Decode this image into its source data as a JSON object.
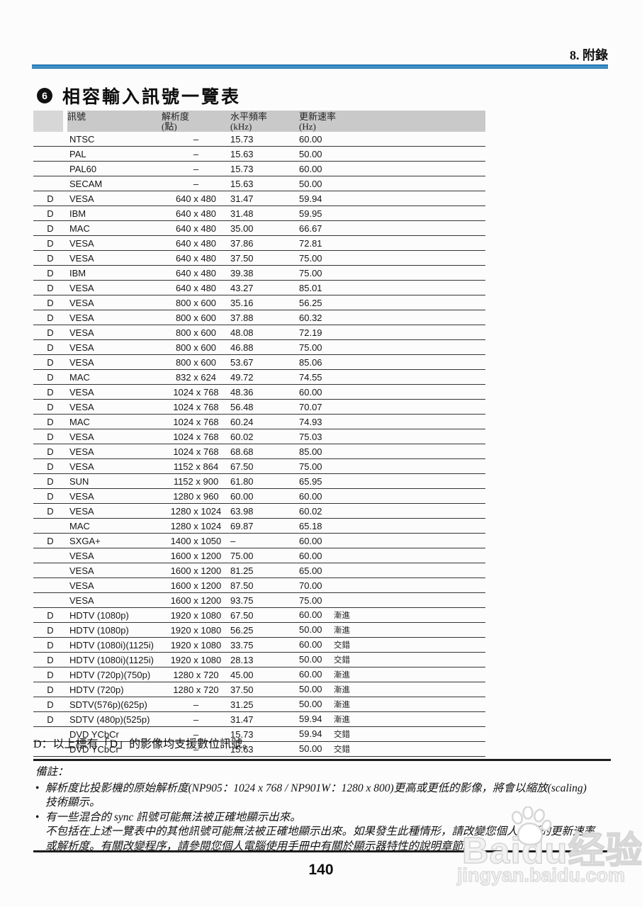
{
  "page": {
    "chapter": "8. 附錄",
    "section_badge": "6",
    "title": "相容輸入訊號一覽表",
    "page_number": "140"
  },
  "table": {
    "headers": {
      "signal": "訊號",
      "resolution_l1": "解析度",
      "resolution_l2": "(點)",
      "hfreq_l1": "水平頻率",
      "hfreq_l2": "(kHz)",
      "refresh_l1": "更新速率",
      "refresh_l2": "(Hz)"
    },
    "rows": [
      {
        "d": "",
        "signal": "NTSC",
        "resolution": "–",
        "hfreq": "15.73",
        "refresh": "60.00",
        "scan": ""
      },
      {
        "d": "",
        "signal": "PAL",
        "resolution": "–",
        "hfreq": "15.63",
        "refresh": "50.00",
        "scan": ""
      },
      {
        "d": "",
        "signal": "PAL60",
        "resolution": "–",
        "hfreq": "15.73",
        "refresh": "60.00",
        "scan": ""
      },
      {
        "d": "",
        "signal": "SECAM",
        "resolution": "–",
        "hfreq": "15.63",
        "refresh": "50.00",
        "scan": ""
      },
      {
        "d": "D",
        "signal": "VESA",
        "resolution": "640 x 480",
        "hfreq": "31.47",
        "refresh": "59.94",
        "scan": ""
      },
      {
        "d": "D",
        "signal": "IBM",
        "resolution": "640 x 480",
        "hfreq": "31.48",
        "refresh": "59.95",
        "scan": ""
      },
      {
        "d": "D",
        "signal": "MAC",
        "resolution": "640 x 480",
        "hfreq": "35.00",
        "refresh": "66.67",
        "scan": ""
      },
      {
        "d": "D",
        "signal": "VESA",
        "resolution": "640 x 480",
        "hfreq": "37.86",
        "refresh": "72.81",
        "scan": ""
      },
      {
        "d": "D",
        "signal": "VESA",
        "resolution": "640 x 480",
        "hfreq": "37.50",
        "refresh": "75.00",
        "scan": ""
      },
      {
        "d": "D",
        "signal": "IBM",
        "resolution": "640 x 480",
        "hfreq": "39.38",
        "refresh": "75.00",
        "scan": ""
      },
      {
        "d": "D",
        "signal": "VESA",
        "resolution": "640 x 480",
        "hfreq": "43.27",
        "refresh": "85.01",
        "scan": ""
      },
      {
        "d": "D",
        "signal": "VESA",
        "resolution": "800 x 600",
        "hfreq": "35.16",
        "refresh": "56.25",
        "scan": ""
      },
      {
        "d": "D",
        "signal": "VESA",
        "resolution": "800 x 600",
        "hfreq": "37.88",
        "refresh": "60.32",
        "scan": ""
      },
      {
        "d": "D",
        "signal": "VESA",
        "resolution": "800 x 600",
        "hfreq": "48.08",
        "refresh": "72.19",
        "scan": ""
      },
      {
        "d": "D",
        "signal": "VESA",
        "resolution": "800 x 600",
        "hfreq": "46.88",
        "refresh": "75.00",
        "scan": ""
      },
      {
        "d": "D",
        "signal": "VESA",
        "resolution": "800 x 600",
        "hfreq": "53.67",
        "refresh": "85.06",
        "scan": ""
      },
      {
        "d": "D",
        "signal": "MAC",
        "resolution": "832 x 624",
        "hfreq": "49.72",
        "refresh": "74.55",
        "scan": ""
      },
      {
        "d": "D",
        "signal": "VESA",
        "resolution": "1024 x 768",
        "hfreq": "48.36",
        "refresh": "60.00",
        "scan": ""
      },
      {
        "d": "D",
        "signal": "VESA",
        "resolution": "1024 x 768",
        "hfreq": "56.48",
        "refresh": "70.07",
        "scan": ""
      },
      {
        "d": "D",
        "signal": "MAC",
        "resolution": "1024 x 768",
        "hfreq": "60.24",
        "refresh": "74.93",
        "scan": ""
      },
      {
        "d": "D",
        "signal": "VESA",
        "resolution": "1024 x 768",
        "hfreq": "60.02",
        "refresh": "75.03",
        "scan": ""
      },
      {
        "d": "D",
        "signal": "VESA",
        "resolution": "1024 x 768",
        "hfreq": "68.68",
        "refresh": "85.00",
        "scan": ""
      },
      {
        "d": "D",
        "signal": "VESA",
        "resolution": "1152 x 864",
        "hfreq": "67.50",
        "refresh": "75.00",
        "scan": ""
      },
      {
        "d": "D",
        "signal": "SUN",
        "resolution": "1152 x 900",
        "hfreq": "61.80",
        "refresh": "65.95",
        "scan": ""
      },
      {
        "d": "D",
        "signal": "VESA",
        "resolution": "1280 x 960",
        "hfreq": "60.00",
        "refresh": "60.00",
        "scan": ""
      },
      {
        "d": "D",
        "signal": "VESA",
        "resolution": "1280 x 1024",
        "hfreq": "63.98",
        "refresh": "60.02",
        "scan": ""
      },
      {
        "d": "",
        "signal": "MAC",
        "resolution": "1280 x 1024",
        "hfreq": "69.87",
        "refresh": "65.18",
        "scan": ""
      },
      {
        "d": "D",
        "signal": "SXGA+",
        "resolution": "1400 x 1050",
        "hfreq": "–",
        "refresh": "60.00",
        "scan": ""
      },
      {
        "d": "",
        "signal": "VESA",
        "resolution": "1600 x 1200",
        "hfreq": "75.00",
        "refresh": "60.00",
        "scan": ""
      },
      {
        "d": "",
        "signal": "VESA",
        "resolution": "1600 x 1200",
        "hfreq": "81.25",
        "refresh": "65.00",
        "scan": ""
      },
      {
        "d": "",
        "signal": "VESA",
        "resolution": "1600 x 1200",
        "hfreq": "87.50",
        "refresh": "70.00",
        "scan": ""
      },
      {
        "d": "",
        "signal": "VESA",
        "resolution": "1600 x 1200",
        "hfreq": "93.75",
        "refresh": "75.00",
        "scan": ""
      },
      {
        "d": "D",
        "signal": "HDTV (1080p)",
        "resolution": "1920 x 1080",
        "hfreq": "67.50",
        "refresh": "60.00",
        "scan": "漸進"
      },
      {
        "d": "D",
        "signal": "HDTV (1080p)",
        "resolution": "1920 x 1080",
        "hfreq": "56.25",
        "refresh": "50.00",
        "scan": "漸進"
      },
      {
        "d": "D",
        "signal": "HDTV (1080i)(1125i)",
        "resolution": "1920 x 1080",
        "hfreq": "33.75",
        "refresh": "60.00",
        "scan": "交錯"
      },
      {
        "d": "D",
        "signal": "HDTV (1080i)(1125i)",
        "resolution": "1920 x 1080",
        "hfreq": "28.13",
        "refresh": "50.00",
        "scan": "交錯"
      },
      {
        "d": "D",
        "signal": "HDTV (720p)(750p)",
        "resolution": "1280 x 720",
        "hfreq": "45.00",
        "refresh": "60.00",
        "scan": "漸進"
      },
      {
        "d": "D",
        "signal": "HDTV (720p)",
        "resolution": "1280 x 720",
        "hfreq": "37.50",
        "refresh": "50.00",
        "scan": "漸進"
      },
      {
        "d": "D",
        "signal": "SDTV(576p)(625p)",
        "resolution": "–",
        "hfreq": "31.25",
        "refresh": "50.00",
        "scan": "漸進"
      },
      {
        "d": "D",
        "signal": "SDTV (480p)(525p)",
        "resolution": "–",
        "hfreq": "31.47",
        "refresh": "59.94",
        "scan": "漸進"
      },
      {
        "d": "",
        "signal": "DVD YCbCr",
        "resolution": "–",
        "hfreq": "15.73",
        "refresh": "59.94",
        "scan": "交錯"
      },
      {
        "d": "",
        "signal": "DVD YCbCr",
        "resolution": "–",
        "hfreq": "15.63",
        "refresh": "50.00",
        "scan": "交錯"
      }
    ]
  },
  "legend": "D：以上標有「D」的影像均支援數位訊號。",
  "notes": {
    "label": "備註：",
    "lines": [
      {
        "bullet": true,
        "text": "解析度比投影機的原始解析度(NP905：1024 x 768 / NP901W：1280 x 800)更高或更低的影像，將會以縮放(scaling)"
      },
      {
        "bullet": false,
        "text": "技術顯示。"
      },
      {
        "bullet": true,
        "text": "有一些混合的 sync 訊號可能無法被正確地顯示出來。"
      },
      {
        "bullet": false,
        "text": "不包括在上述一覽表中的其他訊號可能無法被正確地顯示出來。如果發生此種情形，請改變您個人電腦的更新速率"
      },
      {
        "bullet": false,
        "text": "或解析度。有關改變程序，請參閱您個人電腦使用手冊中有關於顯示器特性的說明章節。"
      }
    ]
  },
  "watermark": {
    "brand": "Baidu经验",
    "url": "jingyan.baidu.com"
  },
  "colors": {
    "accent_blue": "#2f86c2",
    "header_gray": "#c9c9c9",
    "header_gray_light": "#d7d7d7",
    "rule_black": "#1d1d1d"
  }
}
